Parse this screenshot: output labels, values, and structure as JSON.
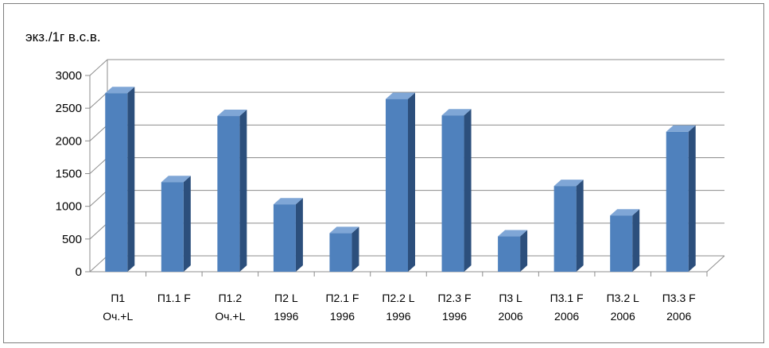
{
  "chart_data": {
    "type": "bar",
    "style": "3d-column",
    "ylabel": "экз./1г в.с.в.",
    "ylim": [
      0,
      3000
    ],
    "yticks": [
      0,
      500,
      1000,
      1500,
      2000,
      2500,
      3000
    ],
    "grid": true,
    "legend": "none",
    "categories": [
      [
        "П1",
        "Оч.+L"
      ],
      [
        "П1.1 F",
        ""
      ],
      [
        "П1.2",
        "Оч.+L"
      ],
      [
        "П2  L",
        "1996"
      ],
      [
        "П2.1 F",
        "1996"
      ],
      [
        "П2.2 L",
        "1996"
      ],
      [
        "П2.3 F",
        "1996"
      ],
      [
        "П3 L",
        "2006"
      ],
      [
        "П3.1 F",
        "2006"
      ],
      [
        "П3.2 L",
        "2006"
      ],
      [
        "П3.3 F",
        "2006"
      ]
    ],
    "values": [
      2730,
      1370,
      2380,
      1030,
      590,
      2640,
      2390,
      540,
      1310,
      860,
      2140
    ],
    "colors": {
      "bar_front": "#4f81bd",
      "bar_side": "#2c4f7c",
      "bar_top": "#7fa6d6",
      "grid": "#8c8c8c"
    }
  }
}
